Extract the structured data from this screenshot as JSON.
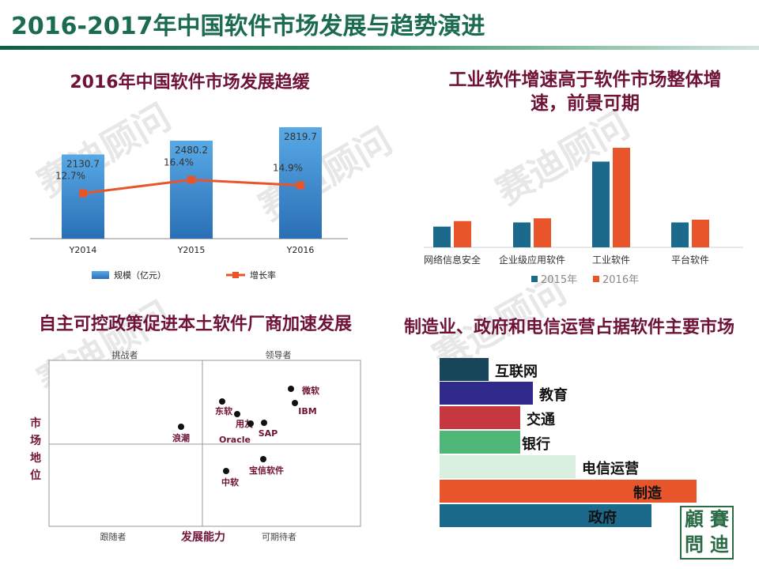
{
  "page": {
    "title": "2016-2017年中国软件市场发展与趋势演进",
    "watermark": "赛迪顾问",
    "logo_text": [
      "顧",
      "賽",
      "問",
      "迪"
    ]
  },
  "panels": {
    "top_left_title": "2016年中国软件市场发展趋缓",
    "top_right_title_1": "工业软件增速高于软件市场整体增",
    "top_right_title_2": "速，前景可期",
    "bottom_left_title": "自主可控政策促进本土软件厂商加速发展",
    "bottom_right_title": "制造业、政府和电信运营占据软件主要市场"
  },
  "chart_data": [
    {
      "type": "bar",
      "categories": [
        "Y2014",
        "Y2015",
        "Y2016"
      ],
      "series": [
        {
          "name": "规模（亿元）",
          "kind": "bar",
          "values": [
            2130.7,
            2480.2,
            2819.7
          ],
          "labels": [
            "2130.7",
            "2480.2",
            "2819.7"
          ]
        },
        {
          "name": "增长率",
          "kind": "line",
          "values": [
            12.7,
            16.4,
            14.9
          ],
          "labels": [
            "12.7%",
            "16.4%",
            "14.9%"
          ]
        }
      ],
      "colors": {
        "bar": "#3f8fd2",
        "line": "#e8552b"
      }
    },
    {
      "type": "bar",
      "categories": [
        "网络信息安全",
        "企业级应用软件",
        "工业软件",
        "平台软件"
      ],
      "series": [
        {
          "name": "2015年",
          "values": [
            15,
            18,
            62,
            18
          ],
          "color": "#1b6a8c"
        },
        {
          "name": "2016年",
          "values": [
            19,
            21,
            72,
            20
          ],
          "color": "#e8552b"
        }
      ],
      "legend": "bottom"
    },
    {
      "type": "scatter",
      "quadrants": [
        "挑战者",
        "领导者",
        "跟随者",
        "可期待者"
      ],
      "ylabel": "市场地位",
      "xlabel": "发展能力",
      "points": [
        {
          "label": "浪潮"
        },
        {
          "label": "东软"
        },
        {
          "label": "用友"
        },
        {
          "label": "Oracle"
        },
        {
          "label": "SAP"
        },
        {
          "label": "微软"
        },
        {
          "label": "IBM"
        },
        {
          "label": "宝信软件"
        },
        {
          "label": "中软"
        }
      ]
    },
    {
      "type": "bar",
      "orientation": "horizontal",
      "categories": [
        "互联网",
        "教育",
        "交通",
        "银行",
        "电信运营",
        "制造",
        "政府"
      ],
      "values": [
        62,
        118,
        102,
        102,
        172,
        325,
        268
      ],
      "colors": [
        "#17465a",
        "#2f2a8c",
        "#c7373f",
        "#4fb878",
        "#d9efdf",
        "#e8552b",
        "#1b6a8c"
      ]
    }
  ]
}
